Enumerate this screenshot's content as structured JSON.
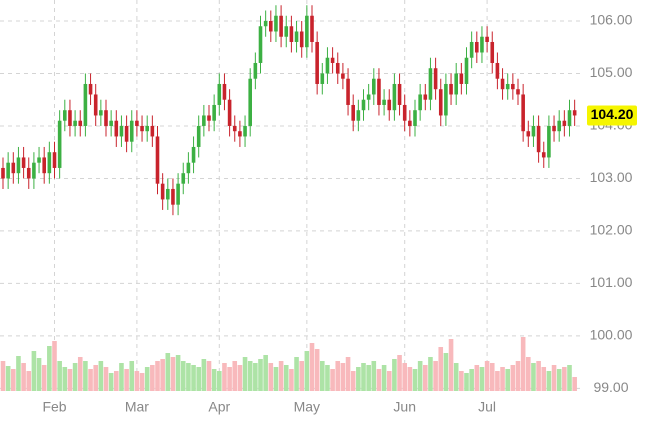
{
  "chart_data": {
    "type": "candlestick",
    "categories": [
      null,
      null,
      null,
      null,
      null,
      null,
      null,
      null,
      null,
      null,
      "Feb",
      null,
      null,
      null,
      null,
      null,
      null,
      null,
      null,
      null,
      null,
      null,
      null,
      null,
      null,
      null,
      "Mar",
      null,
      null,
      null,
      null,
      null,
      null,
      null,
      null,
      null,
      null,
      null,
      null,
      null,
      null,
      null,
      "Apr",
      null,
      null,
      null,
      null,
      null,
      null,
      null,
      null,
      null,
      null,
      null,
      null,
      null,
      null,
      null,
      null,
      "May",
      null,
      null,
      null,
      null,
      null,
      null,
      null,
      null,
      null,
      null,
      null,
      null,
      null,
      null,
      null,
      null,
      null,
      null,
      "Jun",
      null,
      null,
      null,
      null,
      null,
      null,
      null,
      null,
      null,
      null,
      null,
      null,
      null,
      null,
      null,
      "Jul",
      null,
      null,
      null,
      null,
      null,
      null,
      null,
      null,
      null,
      null,
      null,
      null,
      null,
      null,
      null,
      null,
      null
    ],
    "open": [
      103.2,
      103.0,
      103.3,
      103.1,
      103.4,
      103.2,
      103.0,
      103.3,
      103.4,
      103.1,
      103.5,
      103.2,
      104.1,
      104.3,
      104.0,
      104.1,
      104.0,
      104.8,
      104.6,
      104.2,
      104.3,
      104.0,
      104.1,
      103.8,
      104.0,
      103.7,
      104.1,
      104.0,
      103.9,
      104.0,
      103.8,
      102.9,
      102.6,
      102.8,
      102.5,
      102.9,
      103.1,
      103.3,
      103.6,
      104.0,
      104.2,
      104.1,
      104.4,
      104.8,
      104.5,
      104.0,
      103.9,
      103.8,
      104.0,
      104.9,
      105.2,
      105.9,
      106.0,
      105.8,
      106.1,
      105.7,
      105.9,
      105.6,
      105.8,
      105.5,
      106.1,
      105.6,
      104.8,
      105.0,
      105.3,
      105.2,
      105.0,
      104.9,
      104.4,
      104.1,
      104.3,
      104.5,
      104.6,
      104.9,
      104.4,
      104.5,
      104.3,
      104.8,
      104.4,
      104.1,
      104.0,
      104.3,
      104.6,
      104.5,
      105.1,
      104.7,
      104.2,
      104.8,
      104.6,
      105.0,
      104.8,
      105.3,
      105.6,
      105.4,
      105.7,
      105.6,
      105.2,
      104.9,
      104.7,
      104.8,
      104.7,
      104.6,
      103.9,
      103.8,
      104.0,
      103.5,
      103.4,
      104.0,
      103.9,
      104.1,
      104.0,
      104.3
    ],
    "high": [
      103.4,
      103.5,
      103.5,
      103.6,
      103.6,
      103.4,
      103.5,
      103.6,
      103.6,
      103.7,
      103.7,
      104.3,
      104.5,
      104.5,
      104.3,
      104.3,
      105.0,
      105.0,
      104.8,
      104.5,
      104.5,
      104.3,
      104.3,
      104.2,
      104.2,
      104.3,
      104.3,
      104.2,
      104.2,
      104.2,
      104.0,
      103.1,
      103.0,
      103.0,
      103.1,
      103.3,
      103.5,
      103.8,
      104.2,
      104.4,
      104.4,
      104.6,
      105.0,
      105.0,
      104.7,
      104.2,
      104.1,
      104.2,
      105.1,
      105.4,
      106.1,
      106.2,
      106.2,
      106.3,
      106.3,
      106.1,
      106.1,
      106.0,
      106.0,
      106.3,
      106.3,
      105.8,
      105.2,
      105.5,
      105.5,
      105.4,
      105.2,
      105.1,
      104.6,
      104.5,
      104.7,
      104.8,
      105.1,
      105.1,
      104.7,
      104.7,
      105.0,
      105.0,
      104.6,
      104.3,
      104.5,
      104.8,
      104.8,
      105.3,
      105.3,
      104.9,
      105.0,
      105.0,
      105.2,
      105.2,
      105.5,
      105.8,
      105.8,
      105.9,
      105.9,
      105.8,
      105.4,
      105.1,
      105.0,
      105.0,
      104.9,
      104.8,
      104.1,
      104.2,
      104.2,
      103.7,
      104.2,
      104.2,
      104.3,
      104.3,
      104.5,
      104.5
    ],
    "low": [
      102.8,
      102.8,
      102.9,
      102.9,
      103.0,
      102.8,
      102.8,
      103.1,
      102.9,
      102.9,
      103.0,
      103.0,
      103.9,
      103.8,
      103.8,
      103.8,
      103.8,
      104.4,
      104.0,
      104.0,
      103.8,
      103.8,
      103.6,
      103.6,
      103.5,
      103.5,
      103.8,
      103.7,
      103.7,
      103.6,
      102.7,
      102.4,
      102.4,
      102.3,
      102.3,
      102.7,
      102.9,
      103.1,
      103.4,
      103.8,
      103.9,
      103.9,
      104.2,
      104.3,
      103.8,
      103.7,
      103.6,
      103.6,
      103.8,
      104.7,
      105.0,
      105.7,
      105.6,
      105.6,
      105.5,
      105.5,
      105.4,
      105.4,
      105.3,
      105.3,
      105.4,
      104.6,
      104.6,
      104.8,
      105.0,
      104.8,
      104.7,
      104.2,
      103.9,
      103.9,
      104.1,
      104.3,
      104.4,
      104.2,
      104.2,
      104.1,
      104.1,
      104.2,
      103.9,
      103.8,
      103.8,
      104.1,
      104.3,
      104.3,
      104.5,
      104.0,
      104.0,
      104.4,
      104.4,
      104.6,
      104.6,
      105.1,
      105.2,
      105.2,
      105.4,
      105.0,
      104.7,
      104.5,
      104.5,
      104.5,
      104.4,
      103.7,
      103.6,
      103.6,
      103.3,
      103.2,
      103.2,
      103.7,
      103.7,
      103.8,
      103.8,
      104.0
    ],
    "close": [
      103.0,
      103.3,
      103.1,
      103.4,
      103.2,
      103.0,
      103.3,
      103.4,
      103.1,
      103.5,
      103.2,
      104.1,
      104.3,
      104.0,
      104.1,
      104.0,
      104.8,
      104.6,
      104.2,
      104.3,
      104.0,
      104.1,
      103.8,
      104.0,
      103.7,
      104.1,
      104.0,
      103.9,
      104.0,
      103.8,
      102.9,
      102.6,
      102.8,
      102.5,
      102.9,
      103.1,
      103.3,
      103.6,
      104.0,
      104.2,
      104.1,
      104.4,
      104.8,
      104.5,
      104.0,
      103.9,
      103.8,
      104.0,
      104.9,
      105.2,
      105.9,
      106.0,
      105.8,
      106.1,
      105.7,
      105.9,
      105.6,
      105.8,
      105.5,
      106.1,
      105.6,
      104.8,
      105.0,
      105.3,
      105.2,
      105.0,
      104.9,
      104.4,
      104.1,
      104.3,
      104.5,
      104.6,
      104.9,
      104.4,
      104.5,
      104.3,
      104.8,
      104.4,
      104.1,
      104.0,
      104.3,
      104.6,
      104.5,
      105.1,
      104.7,
      104.2,
      104.8,
      104.6,
      105.0,
      104.8,
      105.3,
      105.6,
      105.4,
      105.7,
      105.6,
      105.2,
      104.9,
      104.7,
      104.8,
      104.7,
      104.6,
      103.9,
      103.8,
      104.0,
      103.5,
      103.4,
      104.0,
      103.9,
      104.1,
      104.0,
      104.3,
      104.2
    ],
    "volume": [
      30,
      25,
      22,
      35,
      28,
      20,
      40,
      33,
      26,
      45,
      50,
      30,
      24,
      22,
      28,
      34,
      30,
      22,
      26,
      30,
      24,
      18,
      20,
      28,
      22,
      30,
      20,
      18,
      24,
      26,
      30,
      32,
      38,
      34,
      36,
      30,
      28,
      26,
      24,
      32,
      30,
      22,
      20,
      28,
      24,
      30,
      26,
      34,
      30,
      28,
      32,
      36,
      28,
      24,
      30,
      26,
      22,
      34,
      30,
      40,
      48,
      42,
      30,
      26,
      22,
      30,
      28,
      34,
      20,
      24,
      28,
      26,
      30,
      22,
      26,
      20,
      32,
      36,
      28,
      24,
      22,
      30,
      26,
      34,
      30,
      44,
      38,
      52,
      28,
      20,
      18,
      22,
      26,
      24,
      30,
      28,
      20,
      24,
      22,
      26,
      30,
      54,
      34,
      28,
      30,
      24,
      20,
      26,
      22,
      24,
      26,
      14
    ],
    "volume_lim": [
      0,
      100
    ],
    "ylim": [
      98.95,
      106.4
    ],
    "yticks": [
      {
        "value": 99,
        "label": "99.00"
      },
      {
        "value": 100,
        "label": "100.00"
      },
      {
        "value": 101,
        "label": "101.00"
      },
      {
        "value": 102,
        "label": "102.00"
      },
      {
        "value": 103,
        "label": "103.00"
      },
      {
        "value": 104,
        "label": "104.00"
      },
      {
        "value": 105,
        "label": "105.00"
      },
      {
        "value": 106,
        "label": "106.00"
      }
    ],
    "last_price": {
      "value": 104.2,
      "label": "104.20"
    },
    "grid": true,
    "up_color": "#3cb043",
    "down_color": "#c8232c",
    "up_volume_color": "#ade3a6",
    "down_volume_color": "#f8b9bc",
    "last_price_color": "#f5f500"
  }
}
